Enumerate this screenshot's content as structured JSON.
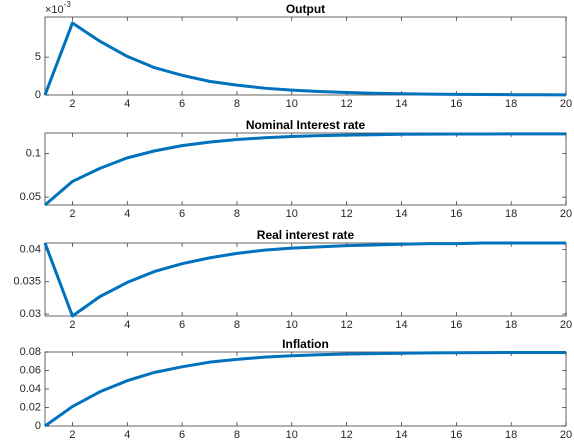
{
  "chart_data": [
    {
      "type": "line",
      "title": "Output",
      "y_multiplier": "×10",
      "y_exponent": "-3",
      "x": [
        1,
        2,
        3,
        4,
        5,
        6,
        7,
        8,
        9,
        10,
        11,
        12,
        13,
        14,
        15,
        16,
        17,
        18,
        19,
        20
      ],
      "values": [
        0,
        9.5,
        7.1,
        5.1,
        3.6,
        2.6,
        1.8,
        1.3,
        0.9,
        0.65,
        0.46,
        0.33,
        0.23,
        0.16,
        0.12,
        0.08,
        0.06,
        0.04,
        0.03,
        0.02
      ],
      "color": "#0072bd",
      "xlim": [
        1,
        20
      ],
      "xticks": [
        2,
        4,
        6,
        8,
        10,
        12,
        14,
        16,
        18,
        20
      ],
      "ylim": [
        0,
        10.3
      ],
      "yticks": [
        0,
        5
      ]
    },
    {
      "type": "line",
      "title": "Nominal Interest rate",
      "x": [
        1,
        2,
        3,
        4,
        5,
        6,
        7,
        8,
        9,
        10,
        11,
        12,
        13,
        14,
        15,
        16,
        17,
        18,
        19,
        20
      ],
      "values": [
        0.041,
        0.068,
        0.083,
        0.095,
        0.103,
        0.109,
        0.113,
        0.116,
        0.118,
        0.1195,
        0.1205,
        0.121,
        0.1215,
        0.122,
        0.1222,
        0.1223,
        0.1224,
        0.1225,
        0.1225,
        0.1225
      ],
      "color": "#0072bd",
      "xlim": [
        1,
        20
      ],
      "xticks": [
        2,
        4,
        6,
        8,
        10,
        12,
        14,
        16,
        18,
        20
      ],
      "ylim": [
        0.041,
        0.1235
      ],
      "yticks": [
        0.05,
        0.1
      ]
    },
    {
      "type": "line",
      "title": "Real interest rate",
      "x": [
        1,
        2,
        3,
        4,
        5,
        6,
        7,
        8,
        9,
        10,
        11,
        12,
        13,
        14,
        15,
        16,
        17,
        18,
        19,
        20
      ],
      "values": [
        0.041,
        0.0297,
        0.0327,
        0.0349,
        0.0366,
        0.0378,
        0.0387,
        0.0394,
        0.0399,
        0.0402,
        0.0404,
        0.0406,
        0.0407,
        0.0408,
        0.0409,
        0.0409,
        0.041,
        0.041,
        0.041,
        0.041
      ],
      "color": "#0072bd",
      "xlim": [
        1,
        20
      ],
      "xticks": [
        2,
        4,
        6,
        8,
        10,
        12,
        14,
        16,
        18,
        20
      ],
      "ylim": [
        0.0297,
        0.041
      ],
      "yticks": [
        0.03,
        0.035,
        0.04
      ]
    },
    {
      "type": "line",
      "title": "Inflation",
      "x": [
        1,
        2,
        3,
        4,
        5,
        6,
        7,
        8,
        9,
        10,
        11,
        12,
        13,
        14,
        15,
        16,
        17,
        18,
        19,
        20
      ],
      "values": [
        0,
        0.021,
        0.037,
        0.049,
        0.058,
        0.064,
        0.069,
        0.072,
        0.0745,
        0.076,
        0.077,
        0.0778,
        0.0783,
        0.0787,
        0.079,
        0.0792,
        0.0793,
        0.0794,
        0.0795,
        0.0795
      ],
      "color": "#0072bd",
      "xlim": [
        1,
        20
      ],
      "xticks": [
        2,
        4,
        6,
        8,
        10,
        12,
        14,
        16,
        18,
        20
      ],
      "ylim": [
        0,
        0.08
      ],
      "yticks": [
        0,
        0.02,
        0.04,
        0.06,
        0.08
      ]
    }
  ]
}
